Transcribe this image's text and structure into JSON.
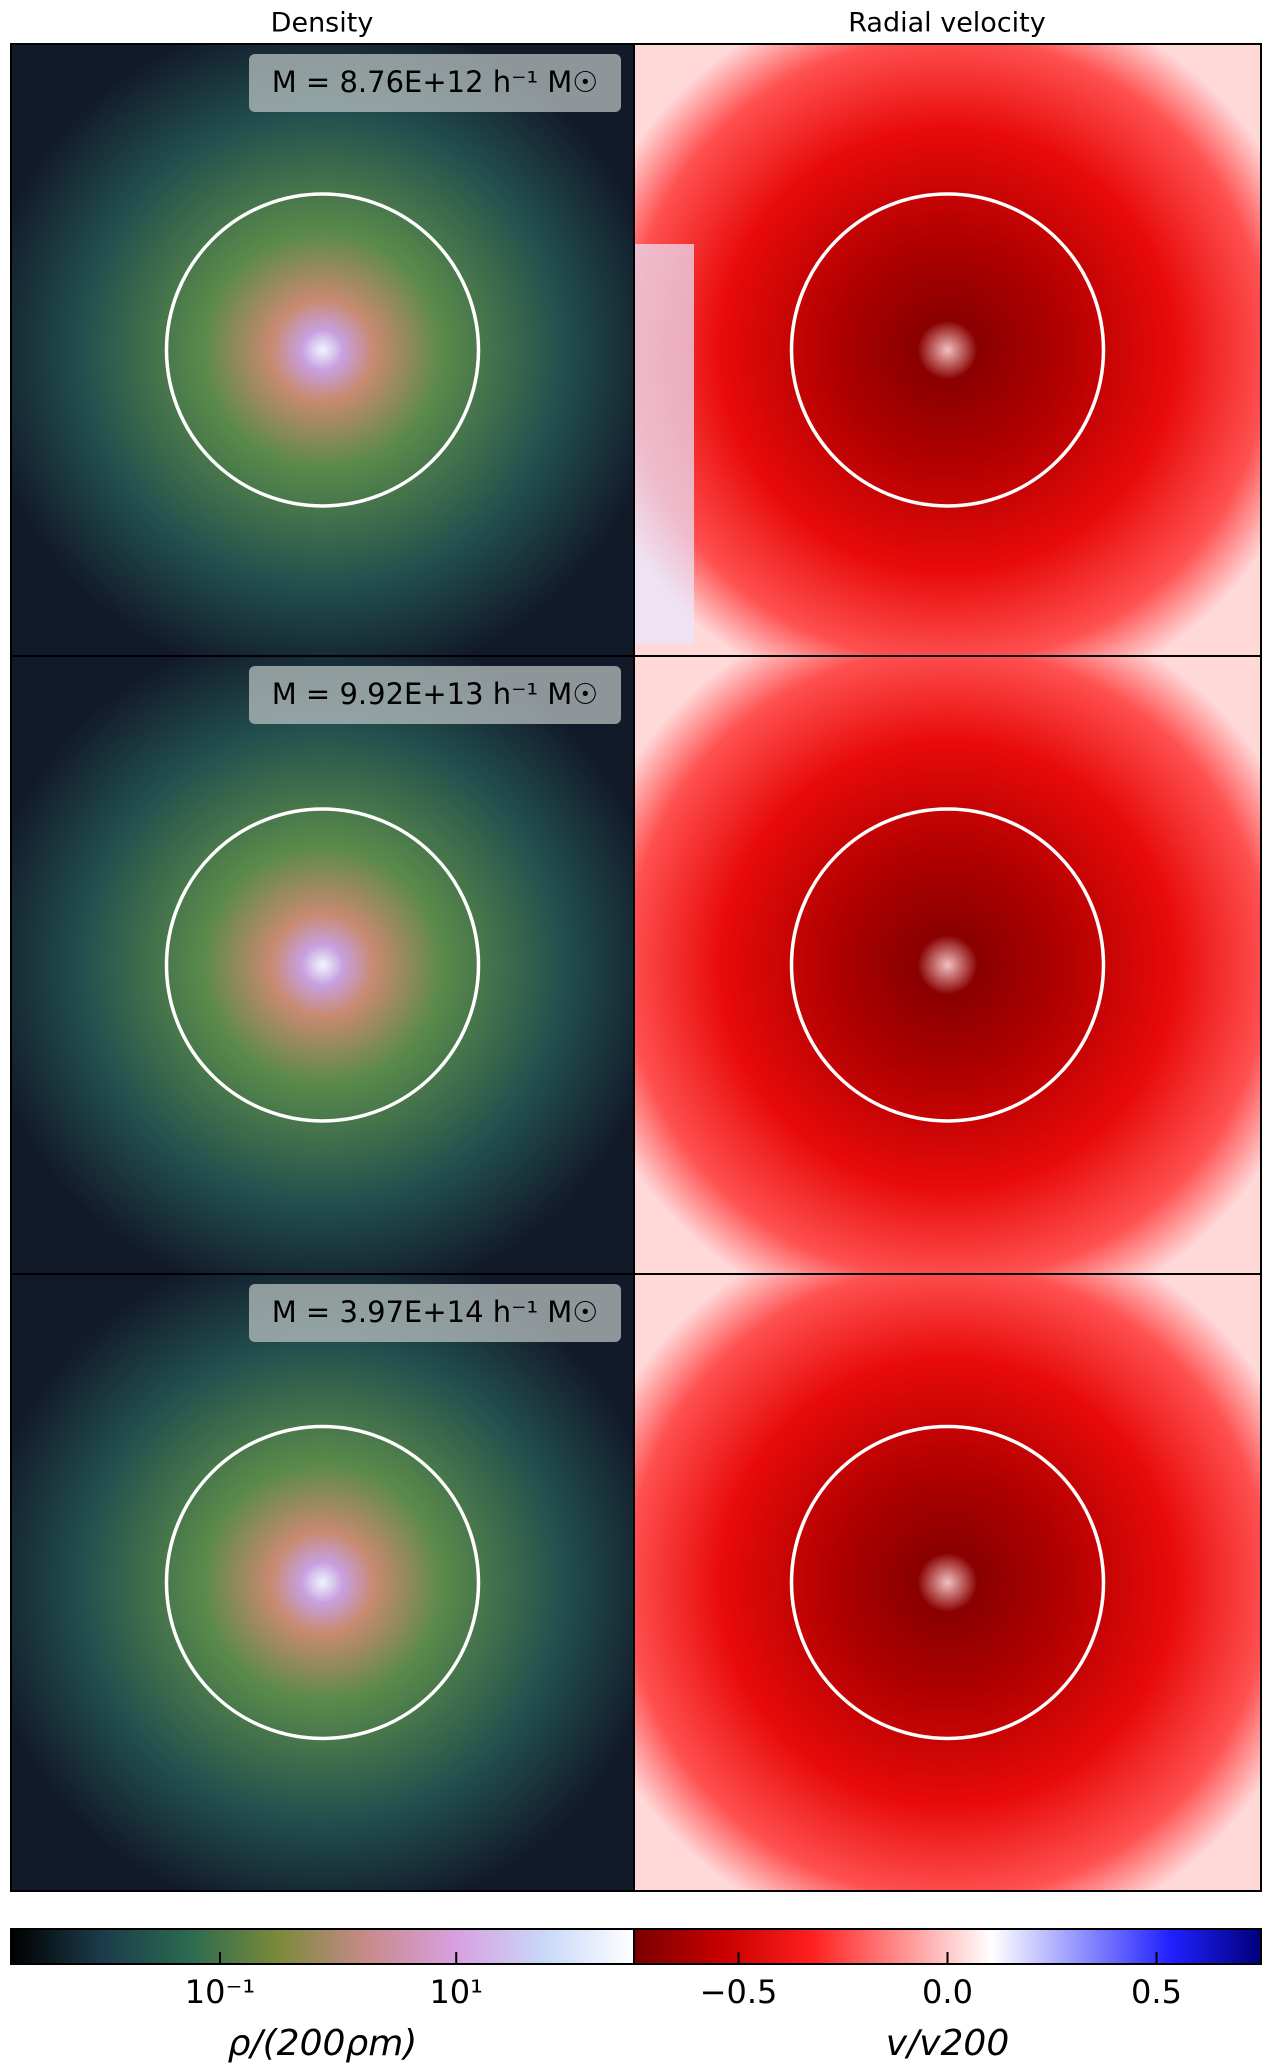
{
  "columns": [
    "Density",
    "Radial velocity"
  ],
  "panels": [
    {
      "mass_label": "M = 8.76E+12 h⁻¹ M☉"
    },
    {
      "mass_label": "M = 9.92E+13 h⁻¹ M☉"
    },
    {
      "mass_label": "M = 3.97E+14 h⁻¹ M☉"
    }
  ],
  "colorbars": [
    {
      "label": "ρ/(200ρm)",
      "scale": "log",
      "lim": [
        0.0017,
        320
      ],
      "colors": [
        "#000000",
        "#1b3a4a",
        "#2a6a50",
        "#7a8a3a",
        "#c88a8a",
        "#d8a0e0",
        "#c8d8f8",
        "#ffffff"
      ],
      "ticks": [
        {
          "value": 0.1,
          "label": "10⁻¹"
        },
        {
          "value": 10,
          "label": "10¹"
        }
      ]
    },
    {
      "label": "v/v200",
      "scale": "linear",
      "lim": [
        -0.75,
        0.75
      ],
      "colors": [
        "#7a0000",
        "#c80000",
        "#ff2020",
        "#ff9090",
        "#ffffff",
        "#9090ff",
        "#2020ff",
        "#00007a"
      ],
      "ticks": [
        {
          "value": -0.5,
          "label": "−0.5"
        },
        {
          "value": 0,
          "label": "0.0"
        },
        {
          "value": 0.5,
          "label": "0.5"
        }
      ]
    }
  ]
}
